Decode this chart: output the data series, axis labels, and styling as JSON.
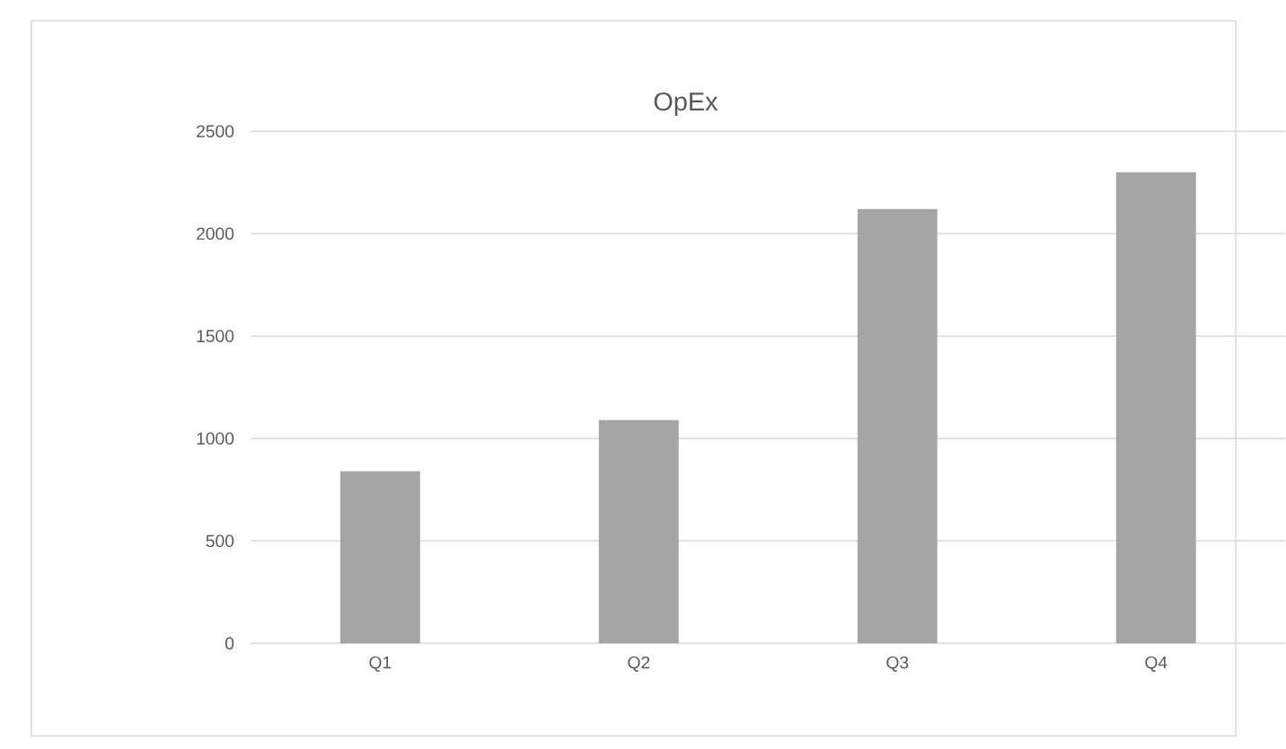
{
  "chart_data": {
    "type": "bar",
    "title": "OpEx",
    "categories": [
      "Q1",
      "Q2",
      "Q3",
      "Q4"
    ],
    "values": [
      840,
      1090,
      2120,
      2300
    ],
    "color": "#a5a5a5",
    "ylim": [
      0,
      2500
    ],
    "yticks": [
      0,
      500,
      1000,
      1500,
      2000,
      2500
    ],
    "grid": "y"
  }
}
